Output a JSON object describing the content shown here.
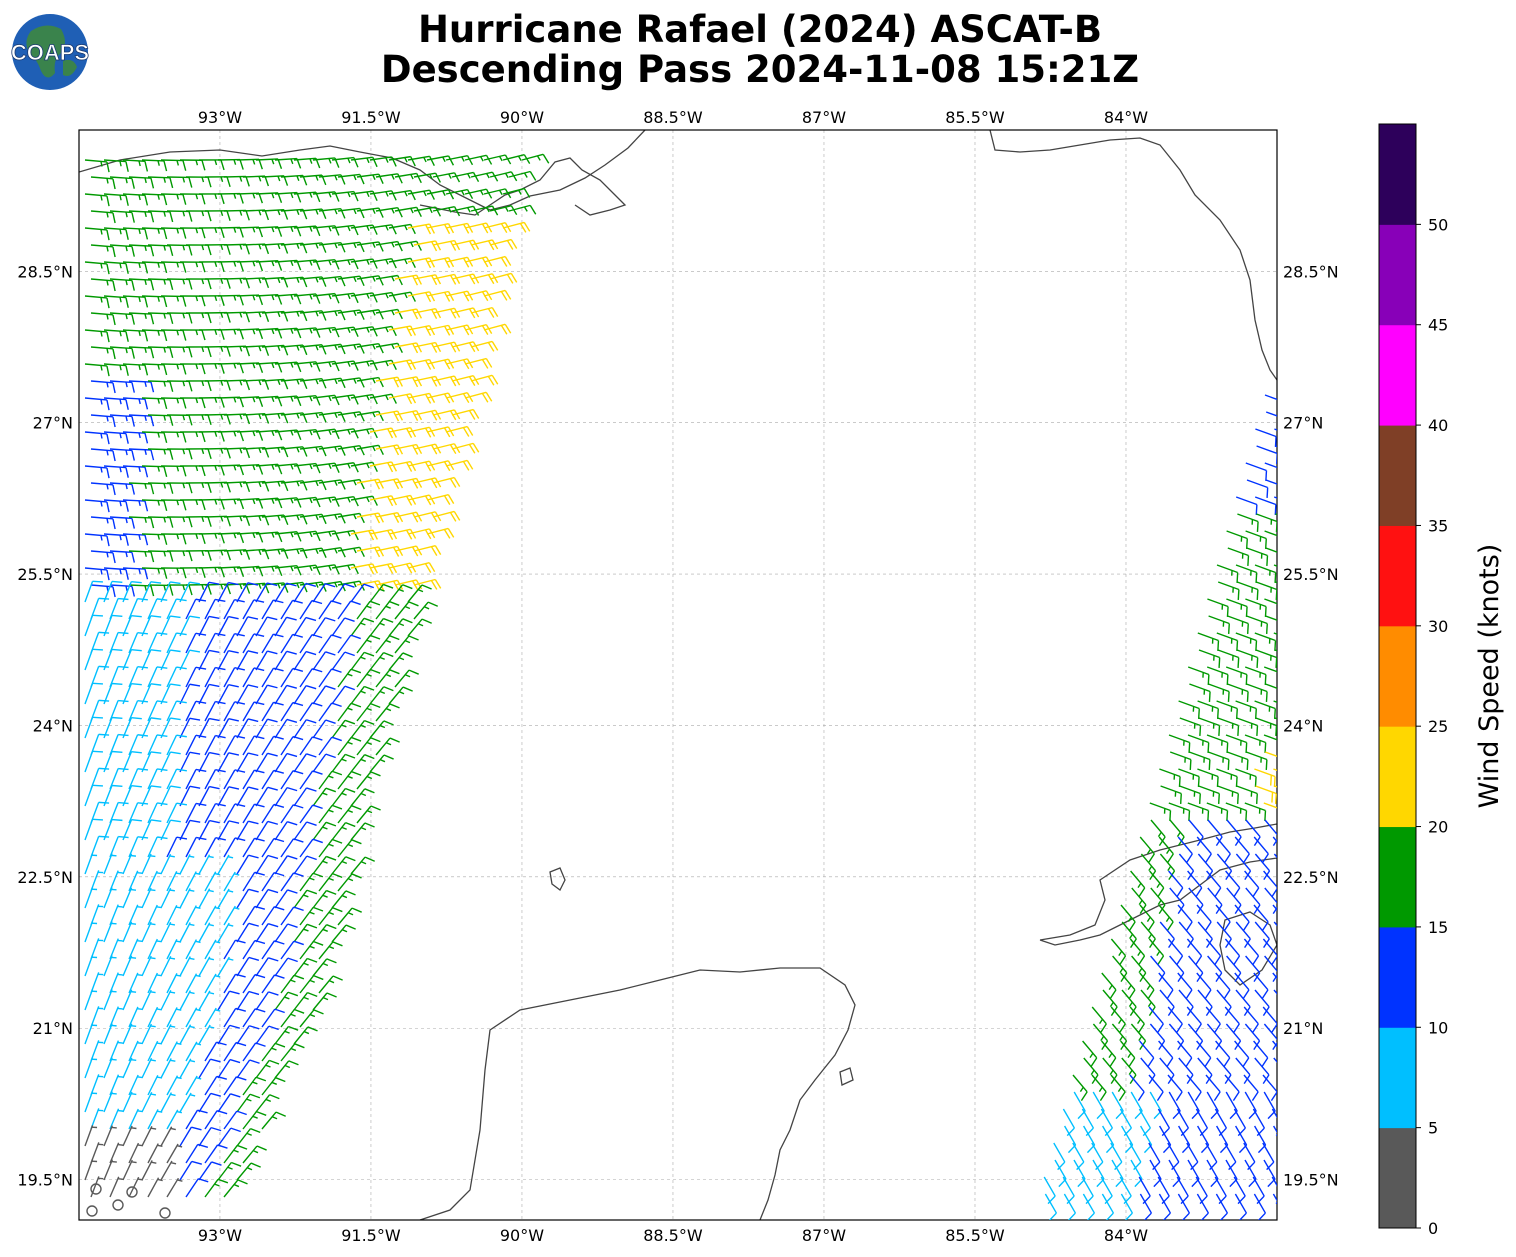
{
  "logo": {
    "text": "COAPS"
  },
  "title": {
    "line1": "Hurricane Rafael (2024) ASCAT-B",
    "line2": "Descending Pass 2024-11-08 15:21Z"
  },
  "map": {
    "lon_ticks": [
      "93°W",
      "91.5°W",
      "90°W",
      "88.5°W",
      "87°W",
      "85.5°W",
      "84°W"
    ],
    "lat_ticks": [
      "28.5°N",
      "27°N",
      "25.5°N",
      "24°N",
      "22.5°N",
      "21°N",
      "19.5°N"
    ],
    "lon_range": [
      -94.4,
      -82.5
    ],
    "lat_range": [
      19.1,
      29.9
    ],
    "gridlines": true
  },
  "colorbar": {
    "label": "Wind Speed (knots)",
    "ticks": [
      "0",
      "5",
      "10",
      "15",
      "20",
      "25",
      "30",
      "35",
      "40",
      "45",
      "50"
    ],
    "colors": [
      "#595959",
      "#00bfff",
      "#0033ff",
      "#009900",
      "#ffd700",
      "#ff8c00",
      "#ff1111",
      "#7f3f26",
      "#ff00ff",
      "#8800b8",
      "#2d005b"
    ]
  },
  "chart_data": {
    "type": "wind-barb-map",
    "units": "knots",
    "speed_bins": [
      0,
      5,
      10,
      15,
      20,
      25,
      30,
      35,
      40,
      45,
      50,
      55
    ],
    "swaths": [
      {
        "region": "western Gulf of Mexico",
        "lon_range": [
          -94.4,
          -89.6
        ],
        "lat_range": [
          19.1,
          29.8
        ]
      },
      {
        "region": "eastern Gulf / western Cuba",
        "lon_range": [
          -84.5,
          -82.6
        ],
        "lat_range": [
          19.1,
          27.3
        ]
      }
    ]
  }
}
